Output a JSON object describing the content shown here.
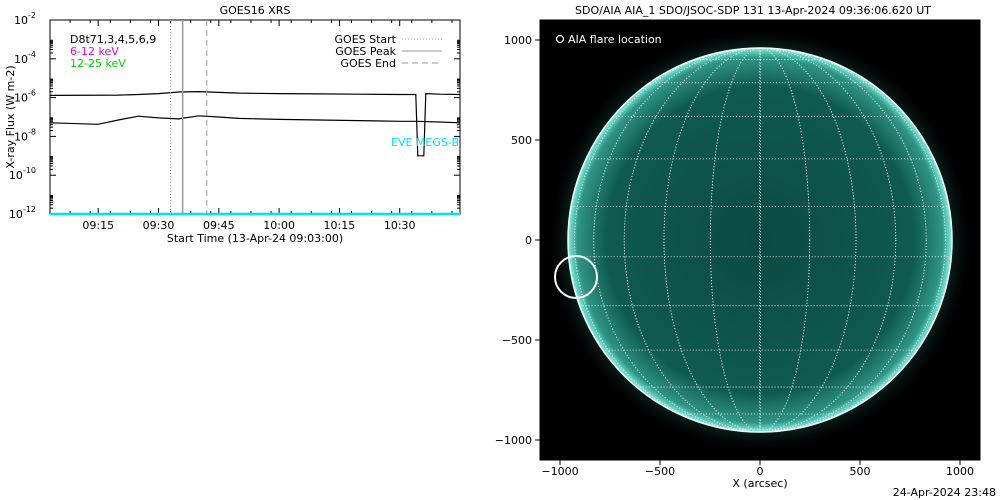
{
  "chart_data": [
    {
      "type": "line",
      "title": "GOES16 XRS",
      "xlabel": "Start Time (13-Apr-24 09:03:00)",
      "ylabel": "X-ray Flux (W m-2)",
      "y_scale": "log",
      "ylim_exponent": [
        -12,
        -2
      ],
      "y_tick_exponents": [
        -12,
        -10,
        -8,
        -6,
        -4,
        -2
      ],
      "xlim_minutes": [
        543,
        645
      ],
      "x_ticks": [
        {
          "label": "09:15",
          "minutes": 555
        },
        {
          "label": "09:30",
          "minutes": 570
        },
        {
          "label": "09:45",
          "minutes": 585
        },
        {
          "label": "10:00",
          "minutes": 600
        },
        {
          "label": "10:15",
          "minutes": 615
        },
        {
          "label": "10:30",
          "minutes": 630
        }
      ],
      "channel_labels": [
        {
          "text": "D8t71,3,4,5,6,9",
          "color": "#000000"
        },
        {
          "text": "6-12 keV",
          "color": "#e000e0"
        },
        {
          "text": "12-25 keV",
          "color": "#00d000"
        }
      ],
      "legend": {
        "placement": "top-right",
        "entries": [
          {
            "label": "GOES Start",
            "style": "dotted"
          },
          {
            "label": "GOES Peak",
            "style": "solid"
          },
          {
            "label": "GOES End",
            "style": "dashed"
          }
        ]
      },
      "eve_label": "EVE MEGS-B",
      "eve_color": "#00e0ff",
      "markers_minutes": {
        "start": 573,
        "peak": 576,
        "end": 582
      },
      "series": [
        {
          "color": "#000000",
          "x": [
            543,
            560,
            565,
            570,
            575,
            580,
            585,
            590,
            600,
            610,
            620,
            630,
            634,
            634.5,
            636,
            636.5,
            640,
            645
          ],
          "y": [
            1.3e-06,
            1.35e-06,
            1.45e-06,
            1.6e-06,
            1.95e-06,
            2.05e-06,
            1.85e-06,
            1.7e-06,
            1.6e-06,
            1.55e-06,
            1.5e-06,
            1.45e-06,
            1.45e-06,
            1e-09,
            1e-09,
            1.6e-06,
            1.5e-06,
            1.45e-06
          ]
        },
        {
          "color": "#000000",
          "x": [
            543,
            550,
            555,
            560,
            565,
            570,
            575,
            580,
            585,
            590,
            600,
            610,
            620,
            630,
            634,
            640,
            645
          ],
          "y": [
            5e-08,
            4.5e-08,
            4.2e-08,
            7e-08,
            1.1e-07,
            9e-08,
            8e-08,
            1.15e-07,
            1e-07,
            8.5e-08,
            7.5e-08,
            7e-08,
            6.5e-08,
            6e-08,
            6e-08,
            5.5e-08,
            5e-08
          ]
        },
        {
          "color": "#00e0ff",
          "x": [
            543,
            645
          ],
          "y": [
            1e-12,
            1e-12
          ]
        }
      ],
      "timestamp": ""
    },
    {
      "type": "scatter",
      "title": "SDO/AIA AIA_1 SDO/JSOC-SDP 131 13-Apr-2024 09:36:06.620 UT",
      "xlabel": "X (arcsec)",
      "ylabel": "",
      "xlim": [
        -1100,
        1100
      ],
      "ylim": [
        -1100,
        1100
      ],
      "x_ticks": [
        -1000,
        -500,
        0,
        500,
        1000
      ],
      "y_ticks": [
        -1000,
        -500,
        0,
        500,
        1000
      ],
      "solar_radius_arcsec": 960,
      "grid": true,
      "legend": {
        "placement": "top-left",
        "entries": [
          {
            "label": "AIA flare location",
            "marker": "circle"
          }
        ]
      },
      "flare_location": {
        "x": -920,
        "y": -185
      },
      "disk_color": "#0f5a50",
      "limb_color": "#7ff0e0",
      "timestamp": "24-Apr-2024 23:48"
    }
  ]
}
